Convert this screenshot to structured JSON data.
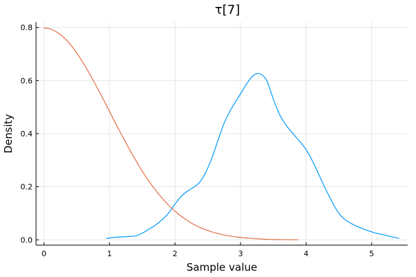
{
  "chart_data": {
    "type": "line",
    "title": "τ[7]",
    "xlabel": "Sample value",
    "ylabel": "Density",
    "xlim": [
      -0.12,
      5.55
    ],
    "ylim": [
      -0.02,
      0.82
    ],
    "xticks": [
      0,
      1,
      2,
      3,
      4,
      5
    ],
    "yticks": [
      0.0,
      0.2,
      0.4,
      0.6,
      0.8
    ],
    "xtick_labels": [
      "0",
      "1",
      "2",
      "3",
      "4",
      "5"
    ],
    "ytick_labels": [
      "0.0",
      "0.2",
      "0.4",
      "0.6",
      "0.8"
    ],
    "grid": true,
    "legend": "none",
    "series": [
      {
        "color": "#009AFA",
        "x": [
          0.95,
          1.1,
          1.25,
          1.4,
          1.5,
          1.6,
          1.7,
          1.8,
          1.9,
          2.0,
          2.1,
          2.2,
          2.35,
          2.45,
          2.55,
          2.65,
          2.75,
          2.85,
          3.0,
          3.1,
          3.2,
          3.3,
          3.4,
          3.5,
          3.6,
          3.7,
          3.8,
          4.0,
          4.15,
          4.3,
          4.5,
          4.7,
          5.0,
          5.2,
          5.42
        ],
        "y": [
          0.005,
          0.01,
          0.012,
          0.015,
          0.025,
          0.04,
          0.055,
          0.075,
          0.1,
          0.135,
          0.165,
          0.185,
          0.21,
          0.245,
          0.3,
          0.37,
          0.44,
          0.49,
          0.55,
          0.59,
          0.62,
          0.625,
          0.6,
          0.53,
          0.47,
          0.43,
          0.4,
          0.34,
          0.27,
          0.19,
          0.1,
          0.06,
          0.03,
          0.018,
          0.005
        ]
      },
      {
        "color": "#E26F46",
        "x": [
          0.0,
          0.1,
          0.2,
          0.3,
          0.4,
          0.5,
          0.6,
          0.7,
          0.8,
          0.9,
          1.0,
          1.1,
          1.2,
          1.3,
          1.4,
          1.5,
          1.6,
          1.7,
          1.8,
          1.9,
          2.0,
          2.1,
          2.2,
          2.3,
          2.4,
          2.5,
          2.6,
          2.7,
          2.8,
          3.0,
          3.2,
          3.4,
          3.6,
          3.88
        ],
        "y": [
          0.798,
          0.794,
          0.782,
          0.763,
          0.737,
          0.704,
          0.666,
          0.624,
          0.579,
          0.532,
          0.484,
          0.435,
          0.389,
          0.343,
          0.3,
          0.259,
          0.222,
          0.188,
          0.158,
          0.131,
          0.108,
          0.088,
          0.071,
          0.056,
          0.045,
          0.035,
          0.027,
          0.021,
          0.016,
          0.009,
          0.005,
          0.002,
          0.001,
          0.0004
        ]
      }
    ]
  }
}
